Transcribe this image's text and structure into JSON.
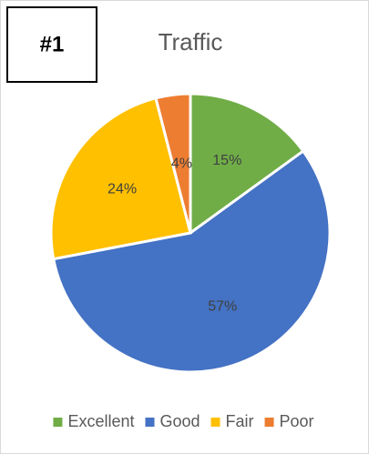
{
  "chart_data": {
    "type": "pie",
    "title": "Traffic",
    "annotations": [
      "#1"
    ],
    "categories": [
      "Excellent",
      "Good",
      "Fair",
      "Poor"
    ],
    "values": [
      15,
      57,
      24,
      4
    ],
    "value_labels": [
      "15%",
      "57%",
      "24%",
      "4%"
    ],
    "colors": [
      "#70ad47",
      "#4472c4",
      "#ffc000",
      "#ed7d31"
    ],
    "legend": "bottom"
  }
}
